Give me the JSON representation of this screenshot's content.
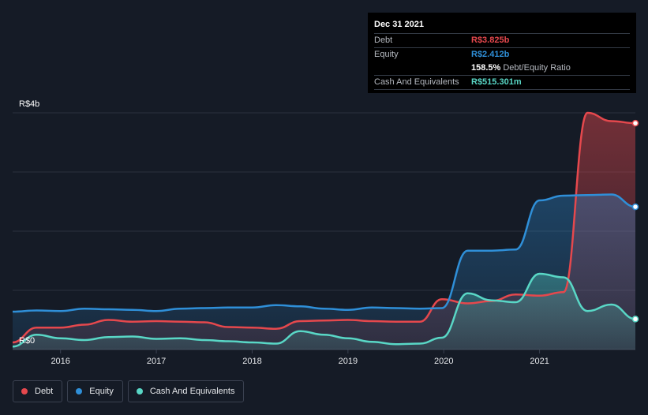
{
  "chart_data": {
    "type": "area",
    "y_unit_labels": [
      "R$4b",
      "R$0"
    ],
    "ylim": [
      0,
      4
    ],
    "x_ticks": [
      "2016",
      "2017",
      "2018",
      "2019",
      "2020",
      "2021"
    ],
    "grid": true,
    "legend_position": "bottom-left",
    "series": [
      {
        "name": "Debt",
        "color": "#e5484d",
        "x": [
          2015.5,
          2015.75,
          2016.0,
          2016.25,
          2016.5,
          2016.75,
          2017.0,
          2017.25,
          2017.5,
          2017.75,
          2018.0,
          2018.25,
          2018.5,
          2018.75,
          2019.0,
          2019.25,
          2019.5,
          2019.75,
          2019.98,
          2020.25,
          2020.5,
          2020.75,
          2021.0,
          2021.25,
          2021.5,
          2021.75,
          2022.0
        ],
        "values": [
          0.12,
          0.37,
          0.37,
          0.42,
          0.5,
          0.47,
          0.48,
          0.47,
          0.46,
          0.38,
          0.37,
          0.35,
          0.48,
          0.49,
          0.5,
          0.48,
          0.47,
          0.47,
          0.85,
          0.78,
          0.82,
          0.93,
          0.91,
          0.97,
          4.0,
          3.86,
          3.825
        ]
      },
      {
        "name": "Equity",
        "color": "#2f8fd8",
        "x": [
          2015.5,
          2015.75,
          2016.0,
          2016.25,
          2016.5,
          2016.75,
          2017.0,
          2017.25,
          2017.5,
          2017.75,
          2018.0,
          2018.25,
          2018.5,
          2018.75,
          2019.0,
          2019.25,
          2019.5,
          2019.75,
          2019.98,
          2020.25,
          2020.5,
          2020.75,
          2021.0,
          2021.25,
          2021.5,
          2021.75,
          2022.0
        ],
        "values": [
          0.64,
          0.66,
          0.65,
          0.69,
          0.68,
          0.67,
          0.65,
          0.69,
          0.7,
          0.71,
          0.71,
          0.75,
          0.73,
          0.69,
          0.67,
          0.71,
          0.7,
          0.69,
          0.7,
          1.67,
          1.67,
          1.69,
          2.52,
          2.6,
          2.61,
          2.62,
          2.412
        ]
      },
      {
        "name": "Cash And Equivalents",
        "color": "#59d7c6",
        "x": [
          2015.5,
          2015.75,
          2016.0,
          2016.25,
          2016.5,
          2016.75,
          2017.0,
          2017.25,
          2017.5,
          2017.75,
          2018.0,
          2018.25,
          2018.5,
          2018.75,
          2019.0,
          2019.25,
          2019.5,
          2019.75,
          2019.98,
          2020.25,
          2020.5,
          2020.75,
          2021.0,
          2021.25,
          2021.5,
          2021.75,
          2022.0
        ],
        "values": [
          0.05,
          0.25,
          0.19,
          0.16,
          0.21,
          0.22,
          0.18,
          0.19,
          0.16,
          0.14,
          0.12,
          0.1,
          0.31,
          0.25,
          0.19,
          0.13,
          0.09,
          0.1,
          0.2,
          0.95,
          0.83,
          0.8,
          1.28,
          1.22,
          0.65,
          0.76,
          0.515
        ]
      }
    ]
  },
  "tooltip": {
    "date": "Dec 31 2021",
    "debt_label": "Debt",
    "debt_value": "R$3.825b",
    "equity_label": "Equity",
    "equity_value": "R$2.412b",
    "ratio_value": "158.5%",
    "ratio_label": "Debt/Equity Ratio",
    "cash_label": "Cash And Equivalents",
    "cash_value": "R$515.301m"
  },
  "legend": {
    "debt": "Debt",
    "equity": "Equity",
    "cash": "Cash And Equivalents"
  },
  "colors": {
    "background": "#151b26",
    "debt": "#e5484d",
    "equity": "#2f8fd8",
    "cash": "#59d7c6"
  }
}
